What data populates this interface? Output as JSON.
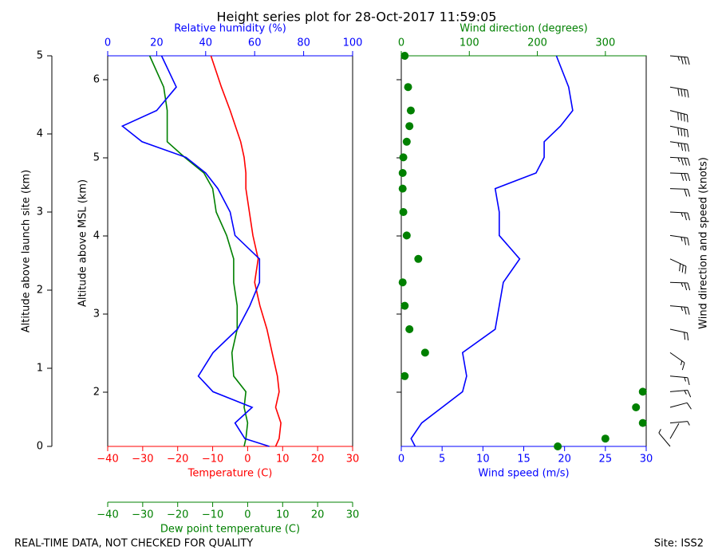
{
  "title": "Height series plot for 28-Oct-2017 11:59:05",
  "note": "REAL-TIME DATA, NOT CHECKED FOR QUALITY",
  "site": "Site: ISS2",
  "chart_data": [
    {
      "type": "line",
      "ylabel": "Altitude above launch site (km)",
      "ylim": [
        0,
        5
      ],
      "yticks": [
        0,
        1,
        2,
        3,
        4,
        5
      ],
      "msl_ylabel": "Altitude above MSL (km)",
      "msl_ylim": [
        1.306,
        6.306
      ],
      "msl_yticks": [
        2,
        3,
        4,
        5,
        6
      ],
      "altitude": [
        0,
        0.1,
        0.3,
        0.5,
        0.7,
        0.9,
        1.2,
        1.5,
        1.8,
        2.1,
        2.4,
        2.7,
        3.0,
        3.3,
        3.5,
        3.7,
        3.9,
        4.1,
        4.3,
        4.6,
        5.0
      ],
      "x_axes": [
        {
          "label": "Temperature (C)",
          "color": "#ff0000",
          "position": "bottom",
          "xlim": [
            -40,
            30
          ],
          "xticks": [
            {
              "value": -40,
              "label": "−40"
            },
            {
              "value": -30,
              "label": "−30"
            },
            {
              "value": -20,
              "label": "−20"
            },
            {
              "value": -10,
              "label": "−10"
            },
            0,
            10,
            20,
            30
          ]
        },
        {
          "label": "Dew point temperature (C)",
          "color": "#008000",
          "position": "offset",
          "xlim": [
            -40,
            30
          ],
          "xticks": [
            {
              "value": -40,
              "label": "−40"
            },
            {
              "value": -30,
              "label": "−30"
            },
            {
              "value": -20,
              "label": "−20"
            },
            {
              "value": -10,
              "label": "−10"
            },
            0,
            10,
            20,
            30
          ]
        },
        {
          "label": "Relative humidity (%)",
          "color": "#0000ff",
          "position": "top",
          "xlim": [
            0,
            100
          ],
          "xticks": [
            0,
            20,
            40,
            60,
            80,
            100
          ]
        }
      ],
      "series": [
        {
          "color": "#ff0000",
          "axis": 0,
          "values": [
            8,
            9,
            9.5,
            8,
            9,
            8.5,
            7,
            5.5,
            3.5,
            2,
            3,
            1.5,
            0.5,
            -0.5,
            -0.5,
            -1,
            -2,
            -3.5,
            -5,
            -7.5,
            -10.5
          ]
        },
        {
          "color": "#008000",
          "axis": 1,
          "values": [
            -1,
            -0.5,
            0,
            -1,
            -0.5,
            -4,
            -4.5,
            -3,
            -3,
            -4,
            -4,
            -6,
            -9,
            -10,
            -12.5,
            -18,
            -23,
            -23,
            -23,
            -24,
            -28
          ]
        },
        {
          "color": "#0000ff",
          "axis": 2,
          "values": [
            66,
            56,
            52,
            59,
            43,
            37,
            43,
            53,
            58,
            62,
            62,
            52,
            50,
            45,
            40,
            32,
            14,
            6,
            20,
            28,
            22
          ]
        }
      ]
    },
    {
      "type": "wind",
      "barb_label": "Wind direction and speed (knots)",
      "x_axes": [
        {
          "label": "Wind speed (m/s)",
          "color": "#0000ff",
          "position": "bottom",
          "xlim": [
            0,
            30
          ],
          "xticks": [
            0,
            5,
            10,
            15,
            20,
            25,
            30
          ]
        },
        {
          "label": "Wind direction (degrees)",
          "color": "#008000",
          "position": "top",
          "xlim": [
            0,
            360
          ],
          "xticks": [
            0,
            100,
            200,
            300
          ]
        }
      ],
      "series": [
        {
          "color": "#0000ff",
          "axis": 0,
          "style": "line",
          "values": [
            1.7,
            1.2,
            2.5,
            5,
            7.5,
            8,
            7.5,
            11.5,
            12,
            12.5,
            14.5,
            12,
            12,
            11.5,
            16.5,
            17.5,
            17.5,
            19.5,
            21,
            20.5,
            19
          ]
        },
        {
          "color": "#008000",
          "axis": 1,
          "style": "dots",
          "values": [
            230,
            300,
            355,
            345,
            355,
            5,
            35,
            12,
            5,
            2,
            25,
            8,
            3,
            2,
            2,
            3,
            8,
            12,
            14,
            10,
            5
          ]
        }
      ]
    }
  ]
}
